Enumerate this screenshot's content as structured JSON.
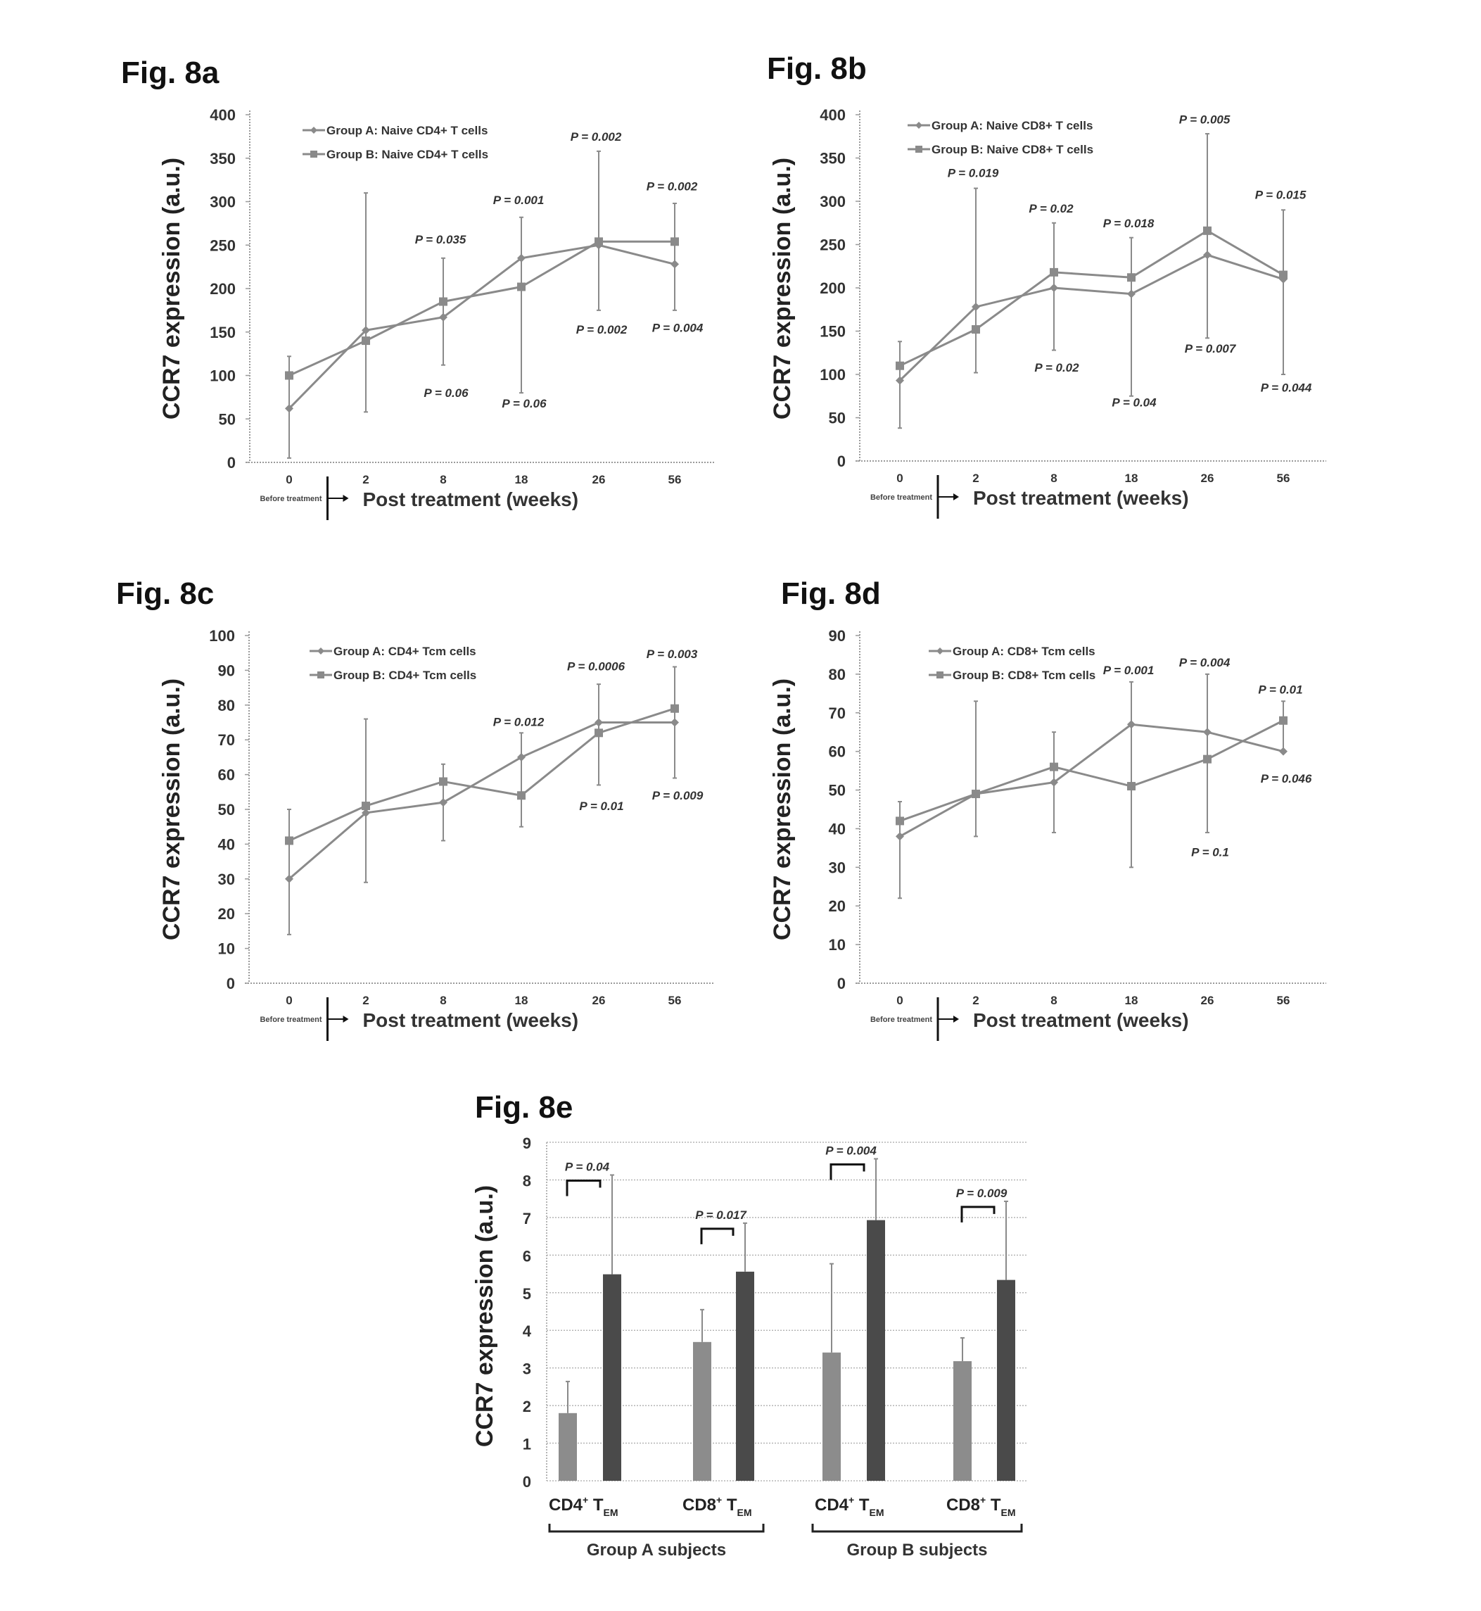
{
  "chart_data": [
    {
      "type": "line",
      "figure_label": "Fig. 8a",
      "ylabel": "CCR7 expression (a.u.)",
      "xlabel": "Post treatment (weeks)",
      "before_label": "Before treatment",
      "x_categories": [
        "0",
        "2",
        "8",
        "18",
        "26",
        "56"
      ],
      "ylim": [
        0,
        400
      ],
      "yticks": [
        0,
        50,
        100,
        150,
        200,
        250,
        300,
        350,
        400
      ],
      "legend_position": "top-left",
      "series": [
        {
          "name": "Group A: Naive CD4+ T cells",
          "marker": "diamond",
          "values": [
            62,
            152,
            167,
            235,
            250,
            228
          ]
        },
        {
          "name": "Group B: Naive CD4+ T cells",
          "marker": "square",
          "values": [
            100,
            140,
            185,
            202,
            254,
            254
          ]
        }
      ],
      "error_bars": [
        [
          5,
          122
        ],
        [
          58,
          310
        ],
        [
          112,
          235
        ],
        [
          80,
          282
        ],
        [
          175,
          358
        ],
        [
          175,
          298
        ]
      ],
      "annotations_top": [
        {
          "x": "8",
          "text": "P = 0.035",
          "y": 252
        },
        {
          "x": "18",
          "text": "P = 0.001",
          "y": 297
        },
        {
          "x": "26",
          "text": "P = 0.002",
          "y": 370
        },
        {
          "x": "56",
          "text": "P = 0.002",
          "y": 313
        }
      ],
      "annotations_bottom": [
        {
          "x": "8",
          "text": "P = 0.06",
          "y": 80
        },
        {
          "x": "18",
          "text": "P = 0.06",
          "y": 68
        },
        {
          "x": "26",
          "text": "P = 0.002",
          "y": 153
        },
        {
          "x": "56",
          "text": "P = 0.004",
          "y": 155
        }
      ]
    },
    {
      "type": "line",
      "figure_label": "Fig. 8b",
      "ylabel": "CCR7 expression (a.u.)",
      "xlabel": "Post treatment (weeks)",
      "before_label": "Before treatment",
      "x_categories": [
        "0",
        "2",
        "8",
        "18",
        "26",
        "56"
      ],
      "ylim": [
        0,
        400
      ],
      "yticks": [
        0,
        50,
        100,
        150,
        200,
        250,
        300,
        350,
        400
      ],
      "legend_position": "top-left",
      "series": [
        {
          "name": "Group A: Naive CD8+ T cells",
          "marker": "diamond",
          "values": [
            93,
            178,
            200,
            193,
            238,
            210
          ]
        },
        {
          "name": "Group B: Naive CD8+ T cells",
          "marker": "square",
          "values": [
            110,
            152,
            218,
            212,
            266,
            215
          ]
        }
      ],
      "error_bars": [
        [
          38,
          138
        ],
        [
          102,
          315
        ],
        [
          128,
          275
        ],
        [
          75,
          258
        ],
        [
          142,
          378
        ],
        [
          100,
          290
        ]
      ],
      "annotations_top": [
        {
          "x": "2",
          "text": "P = 0.019",
          "y": 328
        },
        {
          "x": "8",
          "text": "P = 0.02",
          "y": 287
        },
        {
          "x": "18",
          "text": "P = 0.018",
          "y": 270
        },
        {
          "x": "26",
          "text": "P = 0.005",
          "y": 390
        },
        {
          "x": "56",
          "text": "P = 0.015",
          "y": 303
        }
      ],
      "annotations_bottom": [
        {
          "x": "8",
          "text": "P = 0.02",
          "y": 108
        },
        {
          "x": "18",
          "text": "P = 0.04",
          "y": 68
        },
        {
          "x": "26",
          "text": "P = 0.007",
          "y": 130
        },
        {
          "x": "56",
          "text": "P = 0.044",
          "y": 85
        }
      ]
    },
    {
      "type": "line",
      "figure_label": "Fig. 8c",
      "ylabel": "CCR7 expression (a.u.)",
      "xlabel": "Post treatment (weeks)",
      "before_label": "Before treatment",
      "x_categories": [
        "0",
        "2",
        "8",
        "18",
        "26",
        "56"
      ],
      "ylim": [
        0,
        100
      ],
      "yticks": [
        0,
        10,
        20,
        30,
        40,
        50,
        60,
        70,
        80,
        90,
        100
      ],
      "legend_position": "top-left",
      "series": [
        {
          "name": "Group A: CD4+ Tcm cells",
          "marker": "diamond",
          "values": [
            30,
            49,
            52,
            65,
            75,
            75
          ]
        },
        {
          "name": "Group B: CD4+ Tcm cells",
          "marker": "square",
          "values": [
            41,
            51,
            58,
            54,
            72,
            79
          ]
        }
      ],
      "error_bars": [
        [
          14,
          50
        ],
        [
          29,
          76
        ],
        [
          41,
          63
        ],
        [
          45,
          72
        ],
        [
          57,
          86
        ],
        [
          59,
          91
        ]
      ],
      "annotations_top": [
        {
          "x": "18",
          "text": "P = 0.012",
          "y": 74
        },
        {
          "x": "26",
          "text": "P = 0.0006",
          "y": 90
        },
        {
          "x": "56",
          "text": "P = 0.003",
          "y": 93.5
        }
      ],
      "annotations_bottom": [
        {
          "x": "26",
          "text": "P = 0.01",
          "y": 51
        },
        {
          "x": "56",
          "text": "P = 0.009",
          "y": 54
        }
      ]
    },
    {
      "type": "line",
      "figure_label": "Fig. 8d",
      "ylabel": "CCR7 expression (a.u.)",
      "xlabel": "Post treatment (weeks)",
      "before_label": "Before treatment",
      "x_categories": [
        "0",
        "2",
        "8",
        "18",
        "26",
        "56"
      ],
      "ylim": [
        0,
        90
      ],
      "yticks": [
        0,
        10,
        20,
        30,
        40,
        50,
        60,
        70,
        80,
        90
      ],
      "legend_position": "top-left",
      "series": [
        {
          "name": "Group A: CD8+ Tcm cells",
          "marker": "diamond",
          "values": [
            38,
            49,
            52,
            67,
            65,
            60
          ]
        },
        {
          "name": "Group B: CD8+ Tcm cells",
          "marker": "square",
          "values": [
            42,
            49,
            56,
            51,
            58,
            68
          ]
        }
      ],
      "error_bars": [
        [
          22,
          47
        ],
        [
          38,
          73
        ],
        [
          39,
          65
        ],
        [
          30,
          78
        ],
        [
          39,
          80
        ],
        [
          60,
          73
        ]
      ],
      "annotations_top": [
        {
          "x": "18",
          "text": "P = 0.001",
          "y": 80
        },
        {
          "x": "26",
          "text": "P = 0.004",
          "y": 82
        },
        {
          "x": "56",
          "text": "P = 0.01",
          "y": 75
        }
      ],
      "annotations_bottom": [
        {
          "x": "26",
          "text": "P = 0.1",
          "y": 34
        },
        {
          "x": "56",
          "text": "P = 0.046",
          "y": 53
        }
      ]
    },
    {
      "type": "bar",
      "figure_label": "Fig. 8e",
      "ylabel": "CCR7 expression (a.u.)",
      "ylim": [
        0,
        9
      ],
      "yticks": [
        0,
        1,
        2,
        3,
        4,
        5,
        6,
        7,
        8,
        9
      ],
      "grid": true,
      "groups": [
        {
          "label": "Group A subjects",
          "categories": [
            {
              "cell": "CD4",
              "sup": "+",
              "t": "T",
              "sub": "EM",
              "bars": [
                {
                  "shade": "light",
                  "value": 1.8,
                  "err": 2.64
                },
                {
                  "shade": "dark",
                  "value": 5.49,
                  "err": 8.13
                }
              ],
              "p": "P = 0.04"
            },
            {
              "cell": "CD8",
              "sup": "+",
              "t": "T",
              "sub": "EM",
              "bars": [
                {
                  "shade": "light",
                  "value": 3.69,
                  "err": 4.55
                },
                {
                  "shade": "dark",
                  "value": 5.56,
                  "err": 6.85
                }
              ],
              "p": "P = 0.017"
            }
          ]
        },
        {
          "label": "Group B subjects",
          "categories": [
            {
              "cell": "CD4",
              "sup": "+",
              "t": "T",
              "sub": "EM",
              "bars": [
                {
                  "shade": "light",
                  "value": 3.41,
                  "err": 5.77
                },
                {
                  "shade": "dark",
                  "value": 6.93,
                  "err": 8.56
                }
              ],
              "p": "P = 0.004"
            },
            {
              "cell": "CD8",
              "sup": "+",
              "t": "T",
              "sub": "EM",
              "bars": [
                {
                  "shade": "light",
                  "value": 3.18,
                  "err": 3.8
                },
                {
                  "shade": "dark",
                  "value": 5.34,
                  "err": 7.43
                }
              ],
              "p": "P = 0.009"
            }
          ]
        }
      ]
    }
  ],
  "colors": {
    "line": "#8a8a8a",
    "axis": "#9a9a9a",
    "text": "#222222",
    "bar_light": "#8c8c8c",
    "bar_dark": "#4a4a4a",
    "grid": "#b5b5b5"
  }
}
